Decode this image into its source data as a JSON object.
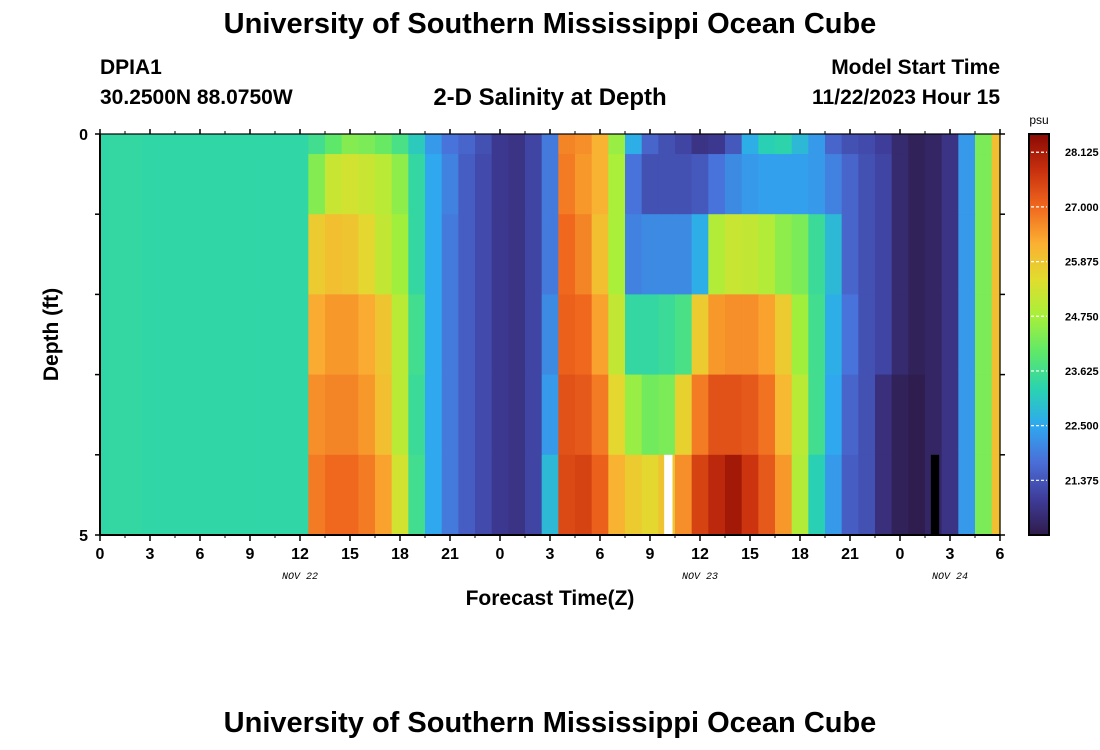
{
  "header": {
    "title": "University of Southern Mississippi Ocean Cube",
    "station": "DPIA1",
    "coordinates": "30.2500N  88.0750W",
    "plot_title": "2-D Salinity at Depth",
    "model_label": "Model Start Time",
    "model_time": "11/22/2023 Hour 15",
    "footer_title": "University of Southern Mississippi Ocean Cube"
  },
  "chart_data": {
    "type": "heatmap",
    "title": "2-D Salinity at Depth",
    "xlabel": "Forecast Time(Z)",
    "ylabel": "Depth (ft)",
    "x_unit": "forecast hours from 00Z Nov 22",
    "xlim": [
      0,
      54
    ],
    "ylim": [
      0,
      5
    ],
    "x_tick_labels": [
      "0",
      "3",
      "6",
      "9",
      "12",
      "15",
      "18",
      "21",
      "0",
      "3",
      "6",
      "9",
      "12",
      "15",
      "18",
      "21",
      "0",
      "3",
      "6"
    ],
    "y_tick_labels": [
      "0",
      "5"
    ],
    "date_labels": [
      {
        "text": "NOV 22",
        "hour": 12
      },
      {
        "text": "NOV 23",
        "hour": 36
      },
      {
        "text": "NOV 24",
        "hour": 51
      }
    ],
    "colorbar": {
      "unit": "psu",
      "min": 20.25,
      "max": 28.5,
      "tick_labels": [
        "28.125",
        "27.000",
        "25.875",
        "24.750",
        "23.625",
        "22.500",
        "21.375"
      ],
      "tick_values": [
        28.125,
        27.0,
        25.875,
        24.75,
        23.625,
        22.5,
        21.375
      ],
      "colors": [
        "#2f1b4a",
        "#3f3d9a",
        "#4a6fd8",
        "#2fa8f0",
        "#2ad3b0",
        "#5ee86a",
        "#a6f03a",
        "#e0dd2e",
        "#fbb032",
        "#f0681e",
        "#c8300e",
        "#8a0a04"
      ]
    },
    "depth_bins": [
      0,
      0.5,
      1.5,
      2.5,
      3.5,
      4.5
    ],
    "hours": [
      0,
      1,
      2,
      3,
      4,
      5,
      6,
      7,
      8,
      9,
      10,
      11,
      12,
      13,
      14,
      15,
      16,
      17,
      18,
      19,
      20,
      21,
      22,
      23,
      24,
      25,
      26,
      27,
      28,
      29,
      30,
      31,
      32,
      33,
      34,
      35,
      36,
      37,
      38,
      39,
      40,
      41,
      42,
      43,
      44,
      45,
      46,
      47,
      48,
      49,
      50,
      51,
      52,
      53,
      54
    ],
    "salinity": [
      [
        23.35,
        23.4,
        23.4,
        23.35,
        23.35,
        23.35,
        23.35,
        23.35,
        23.35,
        23.35,
        23.35,
        23.35,
        23.35,
        23.6,
        24.0,
        24.4,
        24.3,
        24.1,
        23.7,
        23.1,
        22.3,
        21.8,
        21.6,
        21.3,
        20.9,
        20.8,
        21.1,
        21.9,
        26.7,
        26.6,
        26.2,
        24.6,
        22.6,
        21.6,
        21.3,
        21.1,
        20.8,
        20.9,
        21.4,
        22.6,
        23.2,
        23.3,
        22.8,
        22.3,
        21.6,
        21.3,
        21.2,
        21.0,
        20.6,
        20.4,
        20.5,
        20.8,
        22.3,
        24.3,
        26.0
      ],
      [
        23.35,
        23.4,
        23.4,
        23.35,
        23.35,
        23.35,
        23.35,
        23.35,
        23.35,
        23.35,
        23.35,
        23.35,
        23.35,
        24.4,
        25.2,
        25.3,
        25.2,
        25.0,
        24.5,
        23.4,
        22.5,
        22.0,
        21.5,
        21.2,
        20.9,
        20.8,
        21.1,
        21.9,
        26.8,
        26.5,
        26.2,
        24.8,
        21.8,
        21.3,
        21.3,
        21.3,
        21.4,
        21.8,
        22.1,
        22.3,
        22.4,
        22.4,
        22.4,
        22.3,
        22.0,
        21.6,
        21.3,
        21.1,
        20.6,
        20.4,
        20.5,
        20.8,
        22.3,
        24.3,
        26.0
      ],
      [
        23.35,
        23.4,
        23.4,
        23.35,
        23.35,
        23.35,
        23.35,
        23.35,
        23.35,
        23.35,
        23.35,
        23.35,
        23.35,
        25.8,
        26.0,
        25.9,
        25.6,
        25.1,
        24.7,
        23.4,
        22.5,
        21.9,
        21.5,
        21.2,
        20.9,
        20.8,
        21.1,
        21.9,
        27.0,
        26.7,
        26.0,
        24.8,
        22.0,
        22.1,
        22.1,
        22.1,
        22.6,
        24.9,
        25.2,
        25.1,
        24.9,
        24.5,
        24.3,
        23.5,
        22.8,
        21.6,
        21.3,
        21.1,
        20.6,
        20.4,
        20.5,
        20.8,
        22.3,
        24.3,
        26.0
      ],
      [
        23.35,
        23.4,
        23.4,
        23.35,
        23.35,
        23.35,
        23.35,
        23.35,
        23.35,
        23.35,
        23.35,
        23.35,
        23.35,
        26.3,
        26.5,
        26.5,
        26.3,
        25.9,
        25.0,
        23.6,
        22.5,
        21.9,
        21.5,
        21.2,
        20.9,
        20.8,
        21.1,
        22.1,
        27.1,
        27.0,
        26.4,
        25.1,
        23.4,
        23.4,
        23.5,
        23.7,
        25.8,
        26.5,
        26.6,
        26.6,
        26.4,
        25.8,
        24.7,
        23.6,
        22.6,
        21.8,
        21.3,
        21.1,
        20.6,
        20.4,
        20.5,
        20.8,
        22.3,
        24.3,
        26.0
      ],
      [
        23.35,
        23.4,
        23.4,
        23.35,
        23.35,
        23.35,
        23.35,
        23.35,
        23.35,
        23.35,
        23.35,
        23.35,
        23.35,
        26.6,
        26.7,
        26.7,
        26.5,
        26.0,
        25.0,
        23.5,
        22.5,
        21.9,
        21.5,
        21.2,
        20.9,
        20.8,
        21.1,
        22.3,
        27.3,
        27.2,
        26.8,
        25.6,
        24.6,
        24.2,
        24.3,
        25.7,
        26.8,
        27.3,
        27.3,
        27.2,
        26.9,
        26.1,
        25.0,
        23.6,
        22.5,
        21.6,
        21.3,
        20.7,
        20.4,
        20.3,
        20.5,
        20.8,
        22.3,
        24.3,
        26.0
      ],
      [
        23.35,
        23.4,
        23.4,
        23.35,
        23.35,
        23.35,
        23.35,
        23.35,
        23.35,
        23.35,
        23.35,
        23.35,
        23.35,
        26.8,
        27.0,
        27.0,
        26.8,
        26.4,
        25.3,
        23.6,
        22.5,
        21.9,
        21.5,
        21.2,
        20.9,
        20.8,
        21.1,
        22.8,
        27.4,
        27.5,
        27.1,
        26.2,
        25.8,
        25.6,
        25.9,
        26.6,
        27.5,
        27.9,
        28.2,
        27.7,
        27.2,
        26.5,
        24.9,
        23.2,
        22.3,
        21.5,
        21.3,
        20.7,
        20.4,
        20.3,
        20.5,
        20.8,
        22.3,
        24.3,
        26.0
      ]
    ],
    "missing_cells": [
      {
        "hour": 34,
        "depth_bin": 5,
        "fill": "#ffffff"
      },
      {
        "hour": 50,
        "depth_bin": 5,
        "fill": "#000000"
      }
    ]
  }
}
